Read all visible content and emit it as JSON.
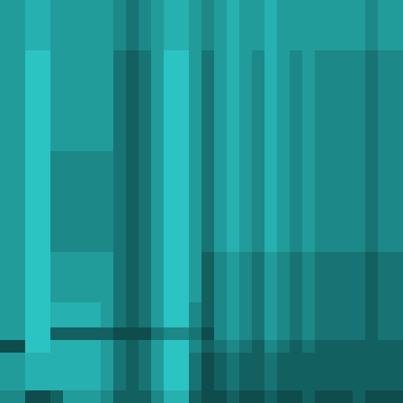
{
  "chart_data": {
    "type": "heatmap",
    "tick_labels": false,
    "color_range": [
      0,
      9
    ],
    "cells": [
      [
        6,
        6,
        7,
        7,
        6,
        6,
        6,
        6,
        6,
        5,
        4,
        5,
        6,
        7,
        7,
        6,
        5,
        6,
        7,
        6,
        6,
        7,
        6,
        6,
        6,
        6,
        6,
        6,
        6,
        5,
        6,
        6
      ],
      [
        6,
        6,
        7,
        7,
        6,
        6,
        6,
        6,
        6,
        5,
        4,
        5,
        6,
        7,
        7,
        6,
        5,
        6,
        7,
        6,
        6,
        7,
        6,
        6,
        6,
        6,
        6,
        6,
        6,
        5,
        6,
        6
      ],
      [
        6,
        6,
        7,
        7,
        6,
        6,
        6,
        6,
        6,
        5,
        4,
        5,
        6,
        7,
        7,
        6,
        5,
        6,
        7,
        6,
        6,
        7,
        6,
        6,
        6,
        6,
        6,
        6,
        6,
        5,
        6,
        6
      ],
      [
        6,
        6,
        7,
        7,
        6,
        6,
        6,
        6,
        6,
        5,
        4,
        5,
        6,
        7,
        7,
        6,
        5,
        6,
        7,
        6,
        6,
        7,
        6,
        6,
        6,
        6,
        6,
        6,
        6,
        5,
        6,
        6
      ],
      [
        6,
        6,
        8,
        8,
        6,
        6,
        6,
        6,
        6,
        4,
        3,
        4,
        6,
        8,
        8,
        6,
        4,
        6,
        7,
        6,
        5,
        7,
        6,
        5,
        6,
        5,
        5,
        5,
        5,
        4,
        5,
        5
      ],
      [
        6,
        6,
        8,
        8,
        6,
        6,
        6,
        6,
        6,
        4,
        3,
        4,
        6,
        8,
        8,
        6,
        4,
        6,
        7,
        6,
        5,
        7,
        6,
        5,
        6,
        5,
        5,
        5,
        5,
        4,
        5,
        5
      ],
      [
        6,
        6,
        8,
        8,
        6,
        6,
        6,
        6,
        6,
        4,
        3,
        4,
        6,
        8,
        8,
        6,
        4,
        6,
        7,
        6,
        5,
        7,
        6,
        5,
        6,
        5,
        5,
        5,
        5,
        4,
        5,
        5
      ],
      [
        6,
        6,
        8,
        8,
        6,
        6,
        6,
        6,
        6,
        4,
        3,
        4,
        6,
        8,
        8,
        6,
        4,
        6,
        7,
        6,
        5,
        7,
        6,
        5,
        6,
        5,
        5,
        5,
        5,
        4,
        5,
        5
      ],
      [
        6,
        6,
        8,
        8,
        6,
        6,
        6,
        6,
        6,
        4,
        3,
        4,
        6,
        8,
        8,
        6,
        4,
        6,
        7,
        6,
        5,
        7,
        6,
        5,
        6,
        5,
        5,
        5,
        5,
        4,
        5,
        5
      ],
      [
        6,
        6,
        8,
        8,
        6,
        6,
        6,
        6,
        6,
        4,
        3,
        4,
        6,
        8,
        8,
        6,
        4,
        6,
        7,
        6,
        5,
        7,
        6,
        5,
        6,
        5,
        5,
        5,
        5,
        4,
        5,
        5
      ],
      [
        6,
        6,
        8,
        8,
        6,
        6,
        6,
        6,
        6,
        4,
        3,
        4,
        6,
        8,
        8,
        6,
        4,
        6,
        7,
        6,
        5,
        7,
        6,
        5,
        6,
        5,
        5,
        5,
        5,
        4,
        5,
        5
      ],
      [
        6,
        6,
        8,
        8,
        6,
        6,
        6,
        6,
        6,
        4,
        3,
        4,
        6,
        8,
        8,
        6,
        4,
        6,
        7,
        6,
        5,
        7,
        6,
        5,
        6,
        5,
        5,
        5,
        5,
        4,
        5,
        5
      ],
      [
        6,
        6,
        8,
        8,
        5,
        5,
        5,
        5,
        5,
        4,
        3,
        4,
        6,
        8,
        8,
        6,
        4,
        6,
        7,
        6,
        5,
        7,
        6,
        5,
        6,
        5,
        5,
        5,
        5,
        4,
        5,
        5
      ],
      [
        6,
        6,
        8,
        8,
        5,
        5,
        5,
        5,
        5,
        4,
        3,
        4,
        6,
        8,
        8,
        6,
        4,
        6,
        7,
        6,
        5,
        7,
        6,
        5,
        6,
        5,
        5,
        5,
        5,
        4,
        5,
        5
      ],
      [
        6,
        6,
        8,
        8,
        5,
        5,
        5,
        5,
        5,
        4,
        3,
        4,
        6,
        8,
        8,
        6,
        4,
        6,
        7,
        6,
        5,
        7,
        6,
        5,
        6,
        5,
        5,
        5,
        5,
        4,
        5,
        5
      ],
      [
        6,
        6,
        8,
        8,
        5,
        5,
        5,
        5,
        5,
        4,
        3,
        4,
        6,
        8,
        8,
        6,
        4,
        6,
        7,
        6,
        5,
        7,
        6,
        5,
        6,
        5,
        5,
        5,
        5,
        4,
        5,
        5
      ],
      [
        6,
        6,
        8,
        8,
        5,
        5,
        5,
        5,
        5,
        4,
        3,
        4,
        6,
        8,
        8,
        6,
        4,
        6,
        7,
        6,
        5,
        7,
        6,
        5,
        6,
        5,
        5,
        5,
        5,
        4,
        5,
        5
      ],
      [
        6,
        6,
        8,
        8,
        5,
        5,
        5,
        5,
        5,
        4,
        3,
        4,
        6,
        8,
        8,
        6,
        4,
        6,
        7,
        6,
        5,
        7,
        6,
        5,
        6,
        5,
        5,
        5,
        5,
        4,
        5,
        5
      ],
      [
        6,
        6,
        8,
        8,
        5,
        5,
        5,
        5,
        5,
        4,
        3,
        4,
        6,
        8,
        8,
        6,
        4,
        6,
        7,
        6,
        5,
        7,
        6,
        5,
        6,
        5,
        5,
        5,
        5,
        4,
        5,
        5
      ],
      [
        6,
        6,
        8,
        8,
        5,
        5,
        5,
        5,
        5,
        4,
        3,
        4,
        6,
        8,
        8,
        6,
        4,
        6,
        7,
        6,
        5,
        7,
        6,
        5,
        6,
        5,
        5,
        5,
        5,
        4,
        5,
        5
      ],
      [
        6,
        6,
        8,
        8,
        6,
        6,
        6,
        6,
        6,
        4,
        3,
        4,
        6,
        8,
        8,
        6,
        3,
        5,
        6,
        5,
        4,
        6,
        5,
        4,
        5,
        4,
        4,
        4,
        4,
        3,
        4,
        4
      ],
      [
        6,
        6,
        8,
        8,
        6,
        6,
        6,
        6,
        6,
        4,
        3,
        4,
        6,
        8,
        8,
        6,
        3,
        5,
        6,
        5,
        4,
        6,
        5,
        4,
        5,
        4,
        4,
        4,
        4,
        3,
        4,
        4
      ],
      [
        6,
        6,
        8,
        8,
        6,
        6,
        6,
        6,
        6,
        4,
        3,
        4,
        6,
        8,
        8,
        6,
        3,
        5,
        6,
        5,
        4,
        6,
        5,
        4,
        5,
        4,
        4,
        4,
        4,
        3,
        4,
        4
      ],
      [
        6,
        6,
        8,
        8,
        6,
        6,
        6,
        6,
        6,
        4,
        3,
        4,
        6,
        8,
        8,
        6,
        3,
        5,
        6,
        5,
        4,
        6,
        5,
        4,
        5,
        4,
        4,
        4,
        4,
        3,
        4,
        4
      ],
      [
        6,
        6,
        8,
        8,
        7,
        7,
        7,
        7,
        6,
        4,
        3,
        4,
        6,
        8,
        8,
        5,
        3,
        5,
        6,
        5,
        4,
        6,
        5,
        4,
        5,
        4,
        4,
        4,
        4,
        3,
        4,
        4
      ],
      [
        6,
        6,
        8,
        8,
        7,
        7,
        7,
        7,
        6,
        4,
        3,
        4,
        6,
        8,
        8,
        5,
        3,
        5,
        6,
        5,
        4,
        6,
        5,
        4,
        5,
        4,
        4,
        4,
        4,
        3,
        4,
        4
      ],
      [
        6,
        6,
        8,
        8,
        3,
        3,
        3,
        3,
        3,
        2,
        2,
        2,
        4,
        5,
        5,
        4,
        2,
        5,
        6,
        5,
        4,
        6,
        5,
        4,
        5,
        4,
        4,
        4,
        4,
        3,
        4,
        4
      ],
      [
        2,
        2,
        8,
        8,
        7,
        7,
        7,
        7,
        6,
        4,
        3,
        4,
        6,
        8,
        8,
        5,
        3,
        4,
        5,
        4,
        3,
        5,
        4,
        3,
        4,
        3,
        3,
        3,
        3,
        3,
        3,
        3
      ],
      [
        6,
        6,
        7,
        7,
        7,
        7,
        7,
        7,
        6,
        4,
        3,
        4,
        6,
        8,
        8,
        4,
        2,
        3,
        4,
        3,
        3,
        4,
        3,
        3,
        3,
        3,
        3,
        3,
        3,
        3,
        3,
        3
      ],
      [
        6,
        6,
        7,
        7,
        7,
        7,
        7,
        7,
        6,
        4,
        3,
        4,
        6,
        8,
        8,
        4,
        2,
        3,
        4,
        3,
        3,
        4,
        3,
        3,
        3,
        3,
        3,
        3,
        3,
        3,
        3,
        3
      ],
      [
        6,
        6,
        7,
        7,
        7,
        7,
        7,
        7,
        6,
        4,
        3,
        4,
        6,
        8,
        8,
        4,
        2,
        3,
        4,
        3,
        3,
        4,
        3,
        3,
        3,
        3,
        3,
        3,
        3,
        3,
        3,
        3
      ],
      [
        5,
        5,
        2,
        2,
        3,
        6,
        6,
        6,
        5,
        3,
        3,
        3,
        5,
        7,
        7,
        3,
        2,
        2,
        3,
        2,
        2,
        3,
        2,
        2,
        3,
        2,
        2,
        2,
        3,
        2,
        2,
        2
      ]
    ]
  }
}
